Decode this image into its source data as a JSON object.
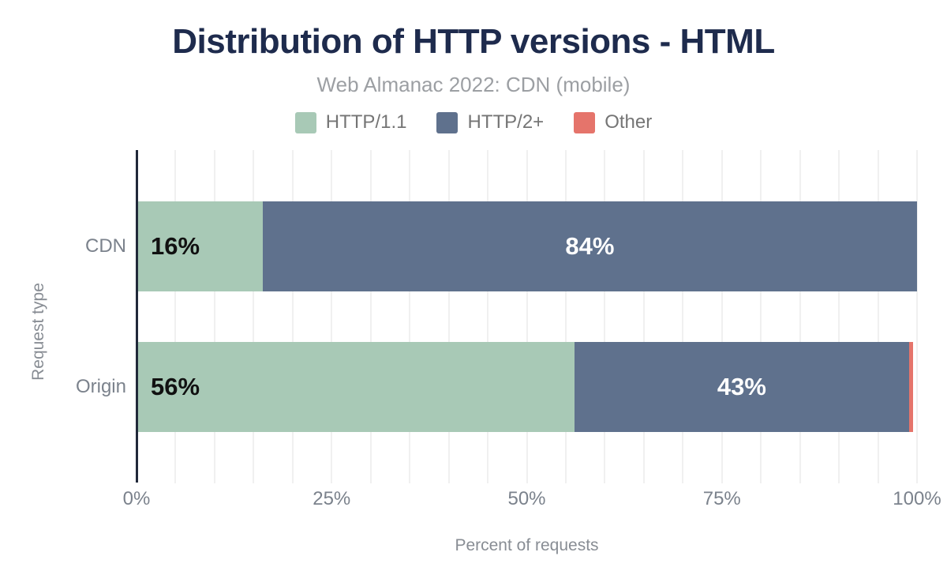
{
  "chart_data": {
    "type": "bar",
    "orientation": "horizontal",
    "stacked": true,
    "title": "Distribution of HTTP versions - HTML",
    "subtitle": "Web Almanac 2022: CDN (mobile)",
    "xlabel": "Percent of requests",
    "ylabel": "Request type",
    "categories": [
      "CDN",
      "Origin"
    ],
    "series": [
      {
        "name": "HTTP/1.1",
        "color": "#a8c9b6",
        "label_color": "#111111",
        "values": [
          16,
          56
        ],
        "labels": [
          "16%",
          "56%"
        ]
      },
      {
        "name": "HTTP/2+",
        "color": "#5f718d",
        "label_color": "#ffffff",
        "values": [
          84,
          43
        ],
        "labels": [
          "84%",
          "43%"
        ]
      },
      {
        "name": "Other",
        "color": "#e5746b",
        "label_color": "#ffffff",
        "values": [
          0,
          0.5
        ],
        "labels": [
          "",
          ""
        ]
      }
    ],
    "xlim": [
      0,
      100
    ],
    "x_ticks": [
      {
        "label": "0%",
        "value": 0
      },
      {
        "label": "25%",
        "value": 25
      },
      {
        "label": "50%",
        "value": 50
      },
      {
        "label": "75%",
        "value": 75
      },
      {
        "label": "100%",
        "value": 100
      }
    ],
    "gridline_step": 5,
    "legend_position": "top",
    "grid": true,
    "colors": {
      "title": "#1e2b4d",
      "subtitle": "#9c9fa3",
      "axis_text": "#7b828c",
      "axis_line": "#21293a",
      "gridline": "#f0f0f0"
    }
  }
}
